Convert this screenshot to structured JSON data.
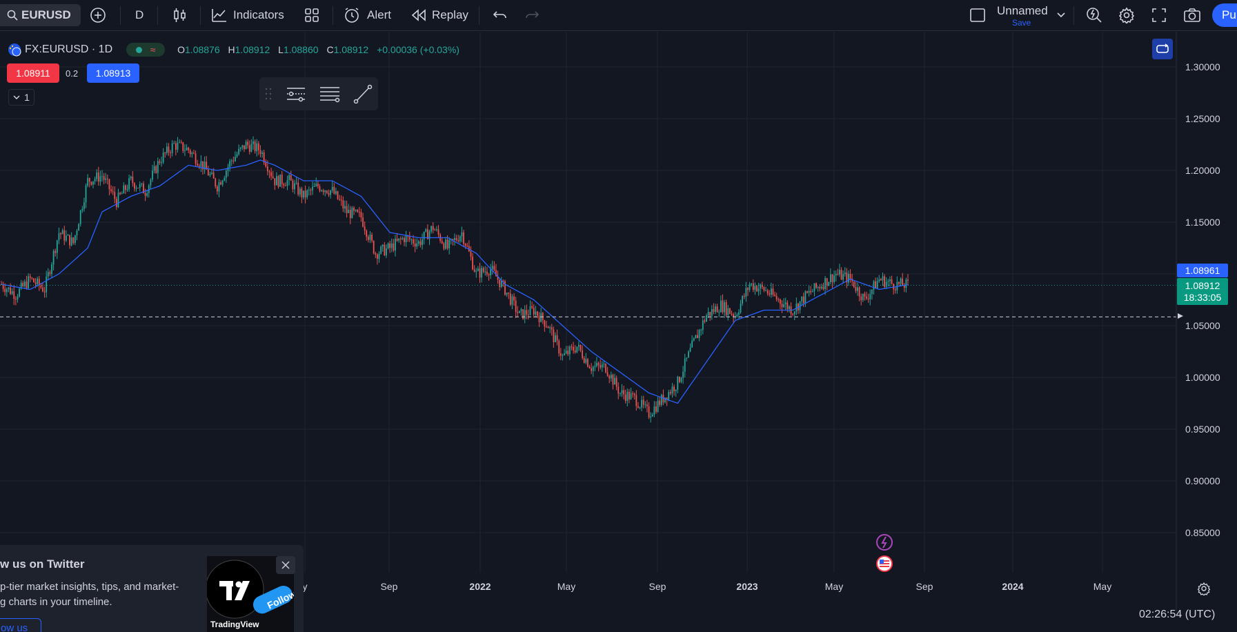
{
  "toolbar": {
    "symbol": "EURUSD",
    "interval": "D",
    "indicators_label": "Indicators",
    "alert_label": "Alert",
    "replay_label": "Replay",
    "layout_name": "Unnamed",
    "layout_save": "Save",
    "publish_label": "Pu"
  },
  "legend": {
    "title": "FX:EURUSD · 1D",
    "o_key": "O",
    "o_val": "1.08876",
    "h_key": "H",
    "h_val": "1.08912",
    "l_key": "L",
    "l_val": "1.08860",
    "c_key": "C",
    "c_val": "1.08912",
    "change": "+0.00036 (+0.03%)",
    "market_status_symbol": "≈"
  },
  "trade": {
    "bid": "1.08911",
    "spread": "0.2",
    "ask": "1.08913"
  },
  "collapse_count": "1",
  "price_tags": {
    "ma_value": "1.08961",
    "last_price": "1.08912",
    "countdown": "18:33:05"
  },
  "clock": "02:26:54 (UTC)",
  "twitter": {
    "title": "w us on Twitter",
    "line1": "p-tier market insights, tips, and market-",
    "line2": "g charts in your timeline.",
    "button": "ow us",
    "brand": "TradingView",
    "follow": "Follow"
  },
  "colors": {
    "bg": "#131722",
    "up": "#26a69a",
    "down": "#ef5350",
    "ma": "#2962ff",
    "accent": "#2962ff"
  },
  "chart_data": {
    "type": "candlestick",
    "symbol": "FX:EURUSD",
    "interval": "1D",
    "price_axis": [
      "1.30000",
      "1.25000",
      "1.20000",
      "1.15000",
      "1.10000",
      "1.05000",
      "1.00000",
      "0.95000",
      "0.90000",
      "0.85000"
    ],
    "ylim": [
      0.81,
      1.33
    ],
    "time_axis": [
      {
        "label": "y",
        "bold": false
      },
      {
        "label": "Sep",
        "bold": false
      },
      {
        "label": "2022",
        "bold": true
      },
      {
        "label": "May",
        "bold": false
      },
      {
        "label": "Sep",
        "bold": false
      },
      {
        "label": "2023",
        "bold": true
      },
      {
        "label": "May",
        "bold": false
      },
      {
        "label": "Sep",
        "bold": false
      },
      {
        "label": "2024",
        "bold": true
      },
      {
        "label": "May",
        "bold": false
      }
    ],
    "price_path": [
      [
        0,
        1.09
      ],
      [
        8,
        1.08
      ],
      [
        16,
        1.095
      ],
      [
        24,
        1.085
      ],
      [
        32,
        1.14
      ],
      [
        40,
        1.13
      ],
      [
        48,
        1.19
      ],
      [
        56,
        1.195
      ],
      [
        64,
        1.17
      ],
      [
        72,
        1.19
      ],
      [
        80,
        1.18
      ],
      [
        88,
        1.21
      ],
      [
        96,
        1.225
      ],
      [
        104,
        1.22
      ],
      [
        112,
        1.205
      ],
      [
        120,
        1.185
      ],
      [
        128,
        1.21
      ],
      [
        136,
        1.225
      ],
      [
        144,
        1.22
      ],
      [
        152,
        1.19
      ],
      [
        160,
        1.19
      ],
      [
        168,
        1.175
      ],
      [
        176,
        1.185
      ],
      [
        184,
        1.18
      ],
      [
        192,
        1.16
      ],
      [
        200,
        1.155
      ],
      [
        208,
        1.12
      ],
      [
        216,
        1.125
      ],
      [
        224,
        1.135
      ],
      [
        232,
        1.13
      ],
      [
        240,
        1.145
      ],
      [
        248,
        1.125
      ],
      [
        256,
        1.14
      ],
      [
        264,
        1.1
      ],
      [
        272,
        1.105
      ],
      [
        280,
        1.085
      ],
      [
        288,
        1.06
      ],
      [
        296,
        1.065
      ],
      [
        304,
        1.05
      ],
      [
        312,
        1.02
      ],
      [
        320,
        1.03
      ],
      [
        328,
        1.01
      ],
      [
        336,
        1.01
      ],
      [
        344,
        0.985
      ],
      [
        352,
        0.98
      ],
      [
        360,
        0.965
      ],
      [
        368,
        0.98
      ],
      [
        376,
        0.995
      ],
      [
        384,
        1.03
      ],
      [
        392,
        1.06
      ],
      [
        400,
        1.07
      ],
      [
        408,
        1.06
      ],
      [
        416,
        1.09
      ],
      [
        424,
        1.085
      ],
      [
        432,
        1.075
      ],
      [
        440,
        1.065
      ],
      [
        448,
        1.08
      ],
      [
        456,
        1.09
      ],
      [
        464,
        1.1
      ],
      [
        472,
        1.095
      ],
      [
        480,
        1.075
      ],
      [
        488,
        1.095
      ],
      [
        496,
        1.09
      ],
      [
        504,
        1.0891
      ]
    ],
    "ma_path": [
      [
        0,
        1.09
      ],
      [
        16,
        1.085
      ],
      [
        32,
        1.1
      ],
      [
        48,
        1.125
      ],
      [
        56,
        1.16
      ],
      [
        72,
        1.175
      ],
      [
        88,
        1.185
      ],
      [
        104,
        1.205
      ],
      [
        120,
        1.2
      ],
      [
        136,
        1.205
      ],
      [
        144,
        1.21
      ],
      [
        152,
        1.205
      ],
      [
        168,
        1.19
      ],
      [
        184,
        1.19
      ],
      [
        200,
        1.175
      ],
      [
        216,
        1.14
      ],
      [
        232,
        1.135
      ],
      [
        248,
        1.135
      ],
      [
        264,
        1.12
      ],
      [
        280,
        1.09
      ],
      [
        296,
        1.075
      ],
      [
        312,
        1.05
      ],
      [
        328,
        1.025
      ],
      [
        344,
        1.005
      ],
      [
        360,
        0.985
      ],
      [
        376,
        0.975
      ],
      [
        392,
        1.015
      ],
      [
        408,
        1.055
      ],
      [
        424,
        1.065
      ],
      [
        440,
        1.065
      ],
      [
        456,
        1.08
      ],
      [
        472,
        1.095
      ],
      [
        488,
        1.085
      ],
      [
        504,
        1.0896
      ]
    ],
    "dashed_level": 1.0585
  }
}
